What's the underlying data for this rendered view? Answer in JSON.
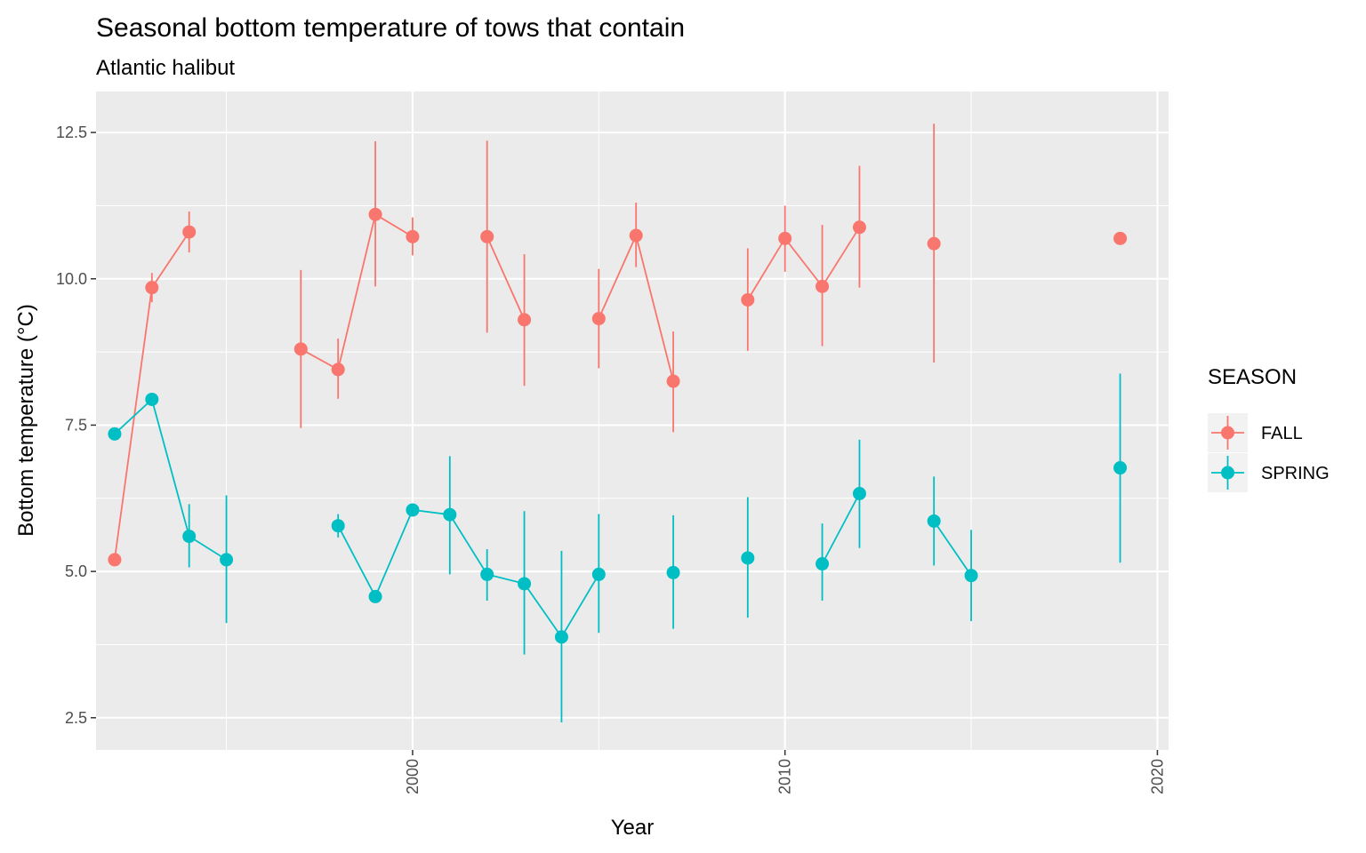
{
  "chart_data": {
    "type": "line",
    "title": "Seasonal bottom temperature of tows that contain",
    "subtitle": "Atlantic halibut",
    "xlabel": "Year",
    "ylabel": "Bottom temperature (°C)",
    "xlim": [
      1991.5,
      2020.3
    ],
    "ylim": [
      1.95,
      13.2
    ],
    "x_ticks": [
      2000,
      2010,
      2020
    ],
    "x_tick_labels": [
      "2000",
      "2010",
      "2020"
    ],
    "y_ticks": [
      2.5,
      5.0,
      7.5,
      10.0,
      12.5
    ],
    "y_tick_labels": [
      "2.5",
      "5.0",
      "7.5",
      "10.0",
      "12.5"
    ],
    "grid": true,
    "legend": {
      "title": "SEASON",
      "position": "right"
    },
    "series": [
      {
        "name": "FALL",
        "color": "#F8766D",
        "points": [
          {
            "x": 1992,
            "y": 5.2,
            "ymin": null,
            "ymax": null
          },
          {
            "x": 1993,
            "y": 9.85,
            "ymin": 9.6,
            "ymax": 10.1
          },
          {
            "x": 1994,
            "y": 10.8,
            "ymin": 10.45,
            "ymax": 11.15
          },
          {
            "x": 1997,
            "y": 8.8,
            "ymin": 7.45,
            "ymax": 10.15
          },
          {
            "x": 1998,
            "y": 8.45,
            "ymin": 7.95,
            "ymax": 8.98
          },
          {
            "x": 1999,
            "y": 11.1,
            "ymin": 9.87,
            "ymax": 12.35
          },
          {
            "x": 2000,
            "y": 10.72,
            "ymin": 10.4,
            "ymax": 11.05
          },
          {
            "x": 2002,
            "y": 10.72,
            "ymin": 9.08,
            "ymax": 12.36
          },
          {
            "x": 2003,
            "y": 9.3,
            "ymin": 8.17,
            "ymax": 10.42
          },
          {
            "x": 2005,
            "y": 9.32,
            "ymin": 8.47,
            "ymax": 10.17
          },
          {
            "x": 2006,
            "y": 10.74,
            "ymin": 10.2,
            "ymax": 11.3
          },
          {
            "x": 2007,
            "y": 8.25,
            "ymin": 7.38,
            "ymax": 9.1
          },
          {
            "x": 2009,
            "y": 9.64,
            "ymin": 8.77,
            "ymax": 10.52
          },
          {
            "x": 2010,
            "y": 10.69,
            "ymin": 10.12,
            "ymax": 11.25
          },
          {
            "x": 2011,
            "y": 9.87,
            "ymin": 8.85,
            "ymax": 10.92
          },
          {
            "x": 2012,
            "y": 10.88,
            "ymin": 9.85,
            "ymax": 11.93
          },
          {
            "x": 2014,
            "y": 10.6,
            "ymin": 8.57,
            "ymax": 12.65
          },
          {
            "x": 2019,
            "y": 10.69,
            "ymin": null,
            "ymax": null
          }
        ],
        "segments": [
          [
            1992,
            1993,
            1994
          ],
          [
            1997,
            1998,
            1999,
            2000
          ],
          [
            2002,
            2003
          ],
          [
            2005,
            2006,
            2007
          ],
          [
            2009,
            2010,
            2011,
            2012
          ]
        ]
      },
      {
        "name": "SPRING",
        "color": "#00BFC4",
        "points": [
          {
            "x": 1992,
            "y": 7.35,
            "ymin": null,
            "ymax": null
          },
          {
            "x": 1993,
            "y": 7.94,
            "ymin": null,
            "ymax": null
          },
          {
            "x": 1994,
            "y": 5.6,
            "ymin": 5.07,
            "ymax": 6.15
          },
          {
            "x": 1995,
            "y": 5.2,
            "ymin": 4.12,
            "ymax": 6.3
          },
          {
            "x": 1998,
            "y": 5.78,
            "ymin": 5.58,
            "ymax": 5.98
          },
          {
            "x": 1999,
            "y": 4.57,
            "ymin": null,
            "ymax": null
          },
          {
            "x": 2000,
            "y": 6.05,
            "ymin": null,
            "ymax": null
          },
          {
            "x": 2001,
            "y": 5.97,
            "ymin": 4.95,
            "ymax": 6.97
          },
          {
            "x": 2002,
            "y": 4.95,
            "ymin": 4.5,
            "ymax": 5.38
          },
          {
            "x": 2003,
            "y": 4.79,
            "ymin": 3.58,
            "ymax": 6.03
          },
          {
            "x": 2004,
            "y": 3.88,
            "ymin": 2.42,
            "ymax": 5.35
          },
          {
            "x": 2005,
            "y": 4.95,
            "ymin": 3.95,
            "ymax": 5.98
          },
          {
            "x": 2007,
            "y": 4.98,
            "ymin": 4.02,
            "ymax": 5.96
          },
          {
            "x": 2009,
            "y": 5.23,
            "ymin": 4.21,
            "ymax": 6.27
          },
          {
            "x": 2011,
            "y": 5.13,
            "ymin": 4.5,
            "ymax": 5.82
          },
          {
            "x": 2012,
            "y": 6.33,
            "ymin": 5.4,
            "ymax": 7.25
          },
          {
            "x": 2014,
            "y": 5.86,
            "ymin": 5.1,
            "ymax": 6.62
          },
          {
            "x": 2015,
            "y": 4.93,
            "ymin": 4.15,
            "ymax": 5.71
          },
          {
            "x": 2019,
            "y": 6.77,
            "ymin": 5.15,
            "ymax": 8.38
          }
        ],
        "segments": [
          [
            1992,
            1993,
            1994,
            1995
          ],
          [
            1998,
            1999,
            2000,
            2001,
            2002,
            2003,
            2004,
            2005
          ],
          [
            2011,
            2012
          ],
          [
            2014,
            2015
          ]
        ]
      }
    ]
  }
}
